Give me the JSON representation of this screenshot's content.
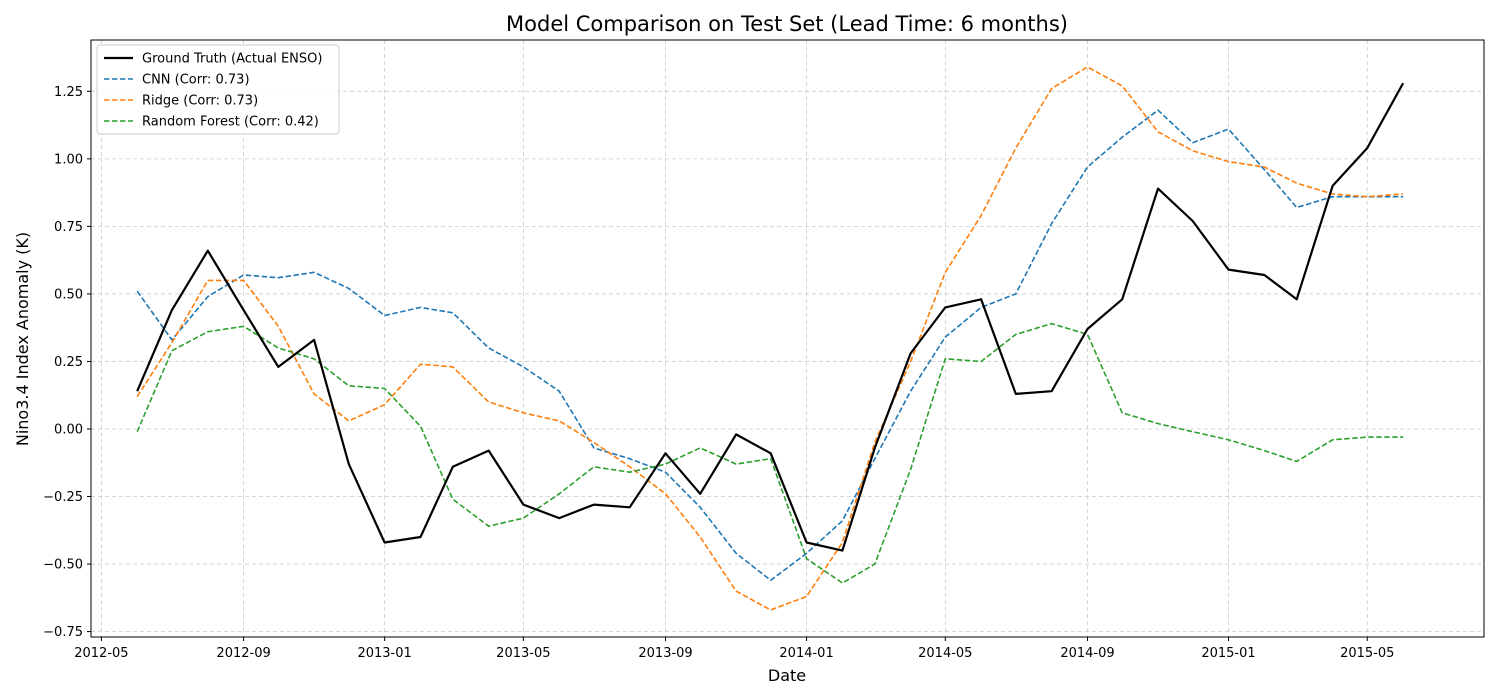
{
  "chart_data": {
    "type": "line",
    "title": "Model Comparison on Test Set (Lead Time: 6 months)",
    "xlabel": "Date",
    "ylabel": "Nino3.4 Index Anomaly (K)",
    "xlim": [
      "2012-04-22",
      "2015-08-10"
    ],
    "ylim": [
      -0.77,
      1.44
    ],
    "x_ticks": [
      "2012-05",
      "2012-09",
      "2013-01",
      "2013-05",
      "2013-09",
      "2014-01",
      "2014-05",
      "2014-09",
      "2015-01",
      "2015-05"
    ],
    "y_ticks": [
      "−0.75",
      "−0.50",
      "−0.25",
      "0.00",
      "0.25",
      "0.50",
      "0.75",
      "1.00",
      "1.25"
    ],
    "grid": true,
    "legend_position": "top-left",
    "x": [
      "2012-06",
      "2012-07",
      "2012-08",
      "2012-09",
      "2012-10",
      "2012-11",
      "2012-12",
      "2013-01",
      "2013-02",
      "2013-03",
      "2013-04",
      "2013-05",
      "2013-06",
      "2013-07",
      "2013-08",
      "2013-09",
      "2013-10",
      "2013-11",
      "2013-12",
      "2014-01",
      "2014-02",
      "2014-03",
      "2014-04",
      "2014-05",
      "2014-06",
      "2014-07",
      "2014-08",
      "2014-09",
      "2014-10",
      "2014-11",
      "2014-12",
      "2015-01",
      "2015-02",
      "2015-03",
      "2015-04",
      "2015-05",
      "2015-06"
    ],
    "series": [
      {
        "name": "Ground Truth (Actual ENSO)",
        "color": "#000000",
        "style": "solid",
        "values": [
          0.14,
          0.44,
          0.66,
          0.44,
          0.23,
          0.33,
          -0.13,
          -0.42,
          -0.4,
          -0.14,
          -0.08,
          -0.28,
          -0.33,
          -0.28,
          -0.29,
          -0.09,
          -0.24,
          -0.02,
          -0.09,
          -0.42,
          -0.45,
          -0.07,
          0.28,
          0.45,
          0.48,
          0.13,
          0.14,
          0.37,
          0.48,
          0.89,
          0.77,
          0.59,
          0.57,
          0.48,
          0.9,
          1.04,
          1.28
        ]
      },
      {
        "name": "CNN (Corr: 0.73)",
        "color": "#1f77b4",
        "style": "dashed",
        "values": [
          0.51,
          0.33,
          0.49,
          0.57,
          0.56,
          0.58,
          0.52,
          0.42,
          0.45,
          0.43,
          0.3,
          0.23,
          0.14,
          -0.07,
          -0.11,
          -0.16,
          -0.29,
          -0.46,
          -0.56,
          -0.46,
          -0.34,
          -0.11,
          0.14,
          0.34,
          0.45,
          0.5,
          0.76,
          0.97,
          1.08,
          1.18,
          1.06,
          1.11,
          0.96,
          0.82,
          0.86,
          0.86,
          0.86
        ]
      },
      {
        "name": "Ridge (Corr: 0.73)",
        "color": "#ff7f0e",
        "style": "dashed",
        "values": [
          0.12,
          0.32,
          0.55,
          0.55,
          0.38,
          0.13,
          0.03,
          0.09,
          0.24,
          0.23,
          0.1,
          0.06,
          0.03,
          -0.05,
          -0.14,
          -0.24,
          -0.4,
          -0.6,
          -0.67,
          -0.62,
          -0.42,
          -0.05,
          0.25,
          0.58,
          0.79,
          1.04,
          1.26,
          1.34,
          1.27,
          1.1,
          1.03,
          0.99,
          0.97,
          0.91,
          0.87,
          0.86,
          0.87
        ]
      },
      {
        "name": "Random Forest (Corr: 0.42)",
        "color": "#2ca02c",
        "style": "dashed",
        "values": [
          -0.01,
          0.29,
          0.36,
          0.38,
          0.3,
          0.26,
          0.16,
          0.15,
          0.01,
          -0.26,
          -0.36,
          -0.33,
          -0.24,
          -0.14,
          -0.16,
          -0.13,
          -0.07,
          -0.13,
          -0.11,
          -0.48,
          -0.57,
          -0.5,
          -0.15,
          0.26,
          0.25,
          0.35,
          0.39,
          0.35,
          0.06,
          0.02,
          -0.01,
          -0.04,
          -0.08,
          -0.12,
          -0.04,
          -0.03,
          -0.03
        ]
      }
    ]
  }
}
